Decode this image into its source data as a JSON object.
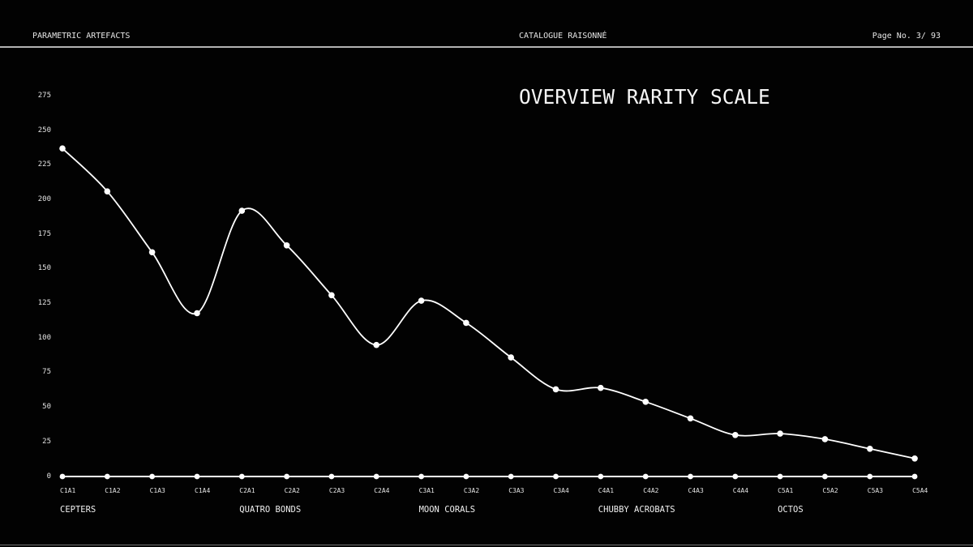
{
  "page": {
    "background": "#000000",
    "text_color": "#ededed",
    "rule_color": "#b3b3b3"
  },
  "header": {
    "left": "PARAMETRIC ARTEFACTS",
    "center": "CATALOGUE RAISONNÉ",
    "page_label": "Page No. 3/ 93"
  },
  "chart_data": {
    "type": "line",
    "title": "OVERVIEW RARITY SCALE",
    "line_color": "#ffffff",
    "marker": "circle",
    "grid": false,
    "legend": "none",
    "x_labels": [
      "C1A1",
      "C1A2",
      "C1A3",
      "C1A4",
      "C2A1",
      "C2A2",
      "C2A3",
      "C2A4",
      "C3A1",
      "C3A2",
      "C3A3",
      "C3A4",
      "C4A1",
      "C4A2",
      "C4A3",
      "C4A4",
      "C5A1",
      "C5A2",
      "C5A3",
      "C5A4"
    ],
    "values": [
      237,
      206,
      162,
      118,
      192,
      167,
      131,
      95,
      127,
      111,
      86,
      63,
      64,
      54,
      42,
      30,
      31,
      27,
      20,
      13
    ],
    "groups": [
      {
        "label": "CEPTERS",
        "starts_at": "C1A1"
      },
      {
        "label": "QUATRO BONDS",
        "starts_at": "C2A1"
      },
      {
        "label": "MOON CORALS",
        "starts_at": "C3A1"
      },
      {
        "label": "CHUBBY ACROBATS",
        "starts_at": "C4A1"
      },
      {
        "label": "OCTOS",
        "starts_at": "C5A1"
      }
    ],
    "y_ticks": [
      0,
      25,
      50,
      75,
      100,
      125,
      150,
      175,
      200,
      225,
      250,
      275
    ],
    "ylim": [
      0,
      275
    ]
  }
}
